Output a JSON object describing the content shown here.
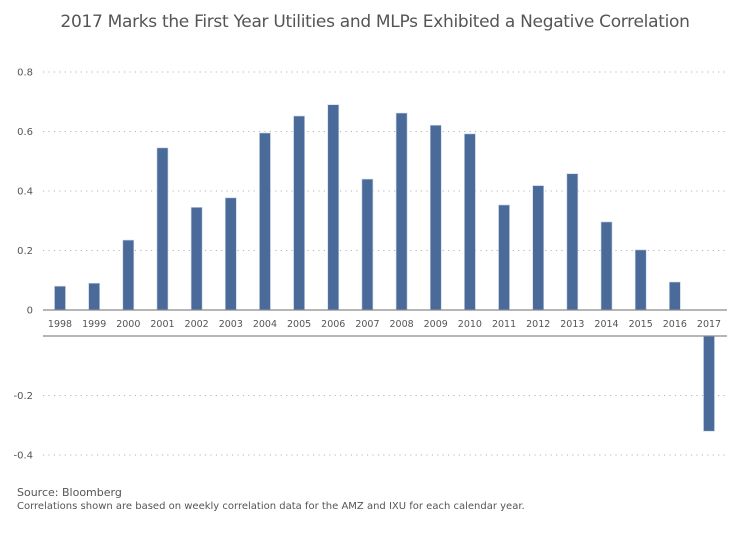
{
  "chart_data": {
    "type": "bar",
    "title": "2017 Marks the First Year Utilities and MLPs Exhibited a Negative Correlation",
    "xlabel": "",
    "ylabel": "",
    "categories": [
      "1998",
      "1999",
      "2000",
      "2001",
      "2002",
      "2003",
      "2004",
      "2005",
      "2006",
      "2007",
      "2008",
      "2009",
      "2010",
      "2011",
      "2012",
      "2013",
      "2014",
      "2015",
      "2016",
      "2017"
    ],
    "values": [
      0.08,
      0.09,
      0.235,
      0.545,
      0.345,
      0.377,
      0.595,
      0.652,
      0.69,
      0.44,
      0.662,
      0.621,
      0.592,
      0.353,
      0.418,
      0.458,
      0.296,
      0.202,
      0.094,
      -0.32
    ],
    "ylim": [
      -0.4,
      0.8
    ],
    "yticks": [
      {
        "value": 0.8,
        "label": "0.8"
      },
      {
        "value": 0.6,
        "label": "0.6"
      },
      {
        "value": 0.4,
        "label": "0.4"
      },
      {
        "value": 0.2,
        "label": "0.2"
      },
      {
        "value": 0,
        "label": "0"
      },
      {
        "value": -0.2,
        "label": "-0.2"
      },
      {
        "value": -0.4,
        "label": "-0.4"
      }
    ],
    "grid": "horizontal-dotted",
    "legend": "none",
    "bar_color": "#4a6b9a"
  },
  "footer": {
    "source": "Source: Bloomberg",
    "note": "Correlations shown are based on weekly correlation data for the AMZ and IXU for each calendar year."
  }
}
